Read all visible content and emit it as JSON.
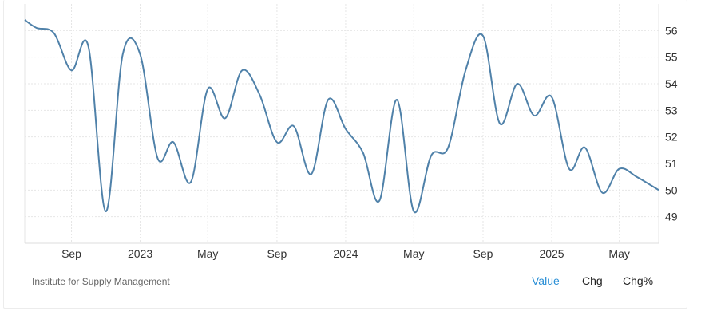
{
  "source": "Institute for Supply Management",
  "tabs": [
    {
      "label": "Value",
      "active": true
    },
    {
      "label": "Chg",
      "active": false
    },
    {
      "label": "Chg%",
      "active": false
    }
  ],
  "colors": {
    "line": "#4f81a9",
    "grid": "#e6e6e6",
    "active_tab": "#2a8fd6"
  },
  "chart_data": {
    "type": "line",
    "title": "",
    "xlabel": "",
    "ylabel": "",
    "ylim": [
      48,
      57
    ],
    "yticks": [
      49,
      50,
      51,
      52,
      53,
      54,
      55,
      56
    ],
    "xlim": [
      "2022-06-10",
      "2025-07-10"
    ],
    "xticks": [
      {
        "date": "2022-09-01",
        "label": "Sep"
      },
      {
        "date": "2023-01-01",
        "label": "2023"
      },
      {
        "date": "2023-05-01",
        "label": "May"
      },
      {
        "date": "2023-09-01",
        "label": "Sep"
      },
      {
        "date": "2024-01-01",
        "label": "2024"
      },
      {
        "date": "2024-05-01",
        "label": "May"
      },
      {
        "date": "2024-09-01",
        "label": "Sep"
      },
      {
        "date": "2025-01-01",
        "label": "2025"
      },
      {
        "date": "2025-05-01",
        "label": "May"
      }
    ],
    "grid": true,
    "y_axis_position": "right",
    "series": [
      {
        "values": [
          [
            "2022-06-10",
            56.4
          ],
          [
            "2022-07-01",
            56.1
          ],
          [
            "2022-08-01",
            55.9
          ],
          [
            "2022-09-01",
            54.5
          ],
          [
            "2022-10-01",
            55.4
          ],
          [
            "2022-11-01",
            49.2
          ],
          [
            "2022-12-01",
            55.1
          ],
          [
            "2023-01-01",
            55.1
          ],
          [
            "2023-02-01",
            51.2
          ],
          [
            "2023-03-01",
            51.8
          ],
          [
            "2023-04-01",
            50.3
          ],
          [
            "2023-05-01",
            53.8
          ],
          [
            "2023-06-01",
            52.7
          ],
          [
            "2023-07-01",
            54.5
          ],
          [
            "2023-08-01",
            53.6
          ],
          [
            "2023-09-01",
            51.8
          ],
          [
            "2023-10-01",
            52.4
          ],
          [
            "2023-11-01",
            50.6
          ],
          [
            "2023-12-01",
            53.4
          ],
          [
            "2024-01-01",
            52.3
          ],
          [
            "2024-02-01",
            51.4
          ],
          [
            "2024-03-01",
            49.6
          ],
          [
            "2024-04-01",
            53.4
          ],
          [
            "2024-05-01",
            49.2
          ],
          [
            "2024-06-01",
            51.3
          ],
          [
            "2024-07-01",
            51.6
          ],
          [
            "2024-08-01",
            54.5
          ],
          [
            "2024-09-01",
            55.8
          ],
          [
            "2024-10-01",
            52.5
          ],
          [
            "2024-11-01",
            54.0
          ],
          [
            "2024-12-01",
            52.8
          ],
          [
            "2025-01-01",
            53.5
          ],
          [
            "2025-02-01",
            50.8
          ],
          [
            "2025-03-01",
            51.6
          ],
          [
            "2025-04-01",
            49.9
          ],
          [
            "2025-05-01",
            50.8
          ],
          [
            "2025-06-01",
            50.5
          ],
          [
            "2025-07-10",
            50.0
          ]
        ]
      }
    ]
  }
}
